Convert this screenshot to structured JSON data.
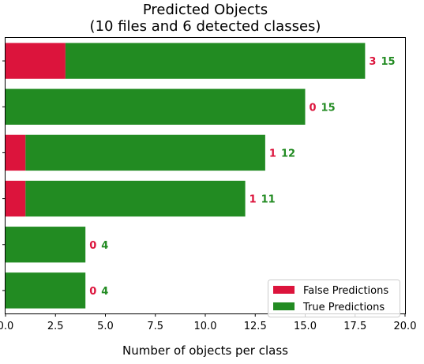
{
  "chart_data": {
    "type": "bar",
    "orientation": "horizontal",
    "stacked": true,
    "title": "Predicted Objects",
    "subtitle": "(10 files and 6 detected classes)",
    "xlabel": "Number of objects per class",
    "ylabel": "",
    "xlim": [
      0,
      20
    ],
    "xticks": [
      "0.0",
      "2.5",
      "5.0",
      "7.5",
      "10.0",
      "12.5",
      "15.0",
      "17.5",
      "20.0"
    ],
    "categories": [
      "",
      "",
      "",
      "",
      "",
      ""
    ],
    "series": [
      {
        "name": "False Predictions",
        "color": "#dc143c",
        "values": [
          3,
          0,
          1,
          1,
          0,
          0
        ]
      },
      {
        "name": "True Predictions",
        "color": "#228b22",
        "values": [
          15,
          15,
          12,
          11,
          4,
          4
        ]
      }
    ],
    "legend_position": "lower-right",
    "grid": false
  }
}
